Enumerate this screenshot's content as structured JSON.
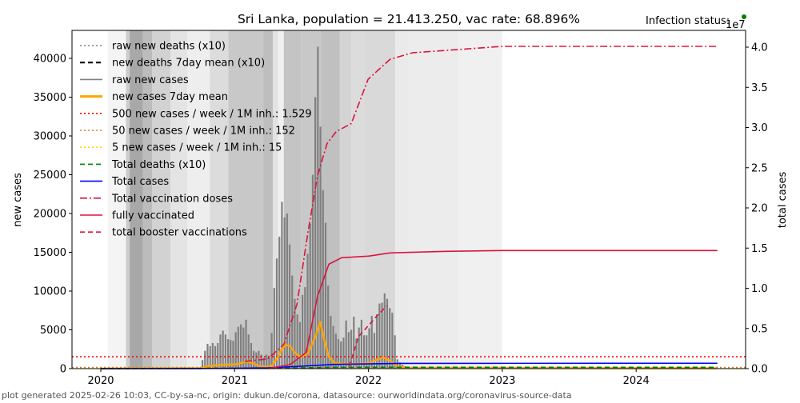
{
  "chart_data": {
    "type": "bar+line",
    "title": "Sri Lanka, population = 21.413.250, vac rate: 68.896%",
    "status_label": "Infection status:",
    "status_color": "#008000",
    "ylabel": "new cases",
    "ylabel_right": "total cases",
    "right_offset_label": "1e7",
    "ylim": [
      0,
      43700
    ],
    "ylim_right": [
      0,
      4.2
    ],
    "xlim": [
      "2019-10-15",
      "2024-11-10"
    ],
    "x_ticks": [
      "2020",
      "2021",
      "2022",
      "2023",
      "2024"
    ],
    "y_ticks": [
      "0",
      "5000",
      "10000",
      "15000",
      "20000",
      "25000",
      "30000",
      "35000",
      "40000"
    ],
    "y_ticks_right": [
      "0.0",
      "0.5",
      "1.0",
      "1.5",
      "2.0",
      "2.5",
      "3.0",
      "3.5",
      "4.0"
    ],
    "grid": false,
    "legend_placement": "upper-left",
    "legend": [
      {
        "label": "raw new deaths (x10)",
        "color": "#808080",
        "style": "dotted"
      },
      {
        "label": "new deaths 7day mean (x10)",
        "color": "#000000",
        "style": "dashed"
      },
      {
        "label": "raw new cases",
        "color": "#808080",
        "style": "solid"
      },
      {
        "label": "new cases 7day mean",
        "color": "#ffa500",
        "style": "solid-thick"
      },
      {
        "label": "500 new cases / week / 1M inh.: 1.529",
        "color": "#ff0000",
        "style": "dotted"
      },
      {
        "label": "50 new cases / week / 1M inh.: 152",
        "color": "#cd853f",
        "style": "dotted"
      },
      {
        "label": "5 new cases / week / 1M inh.: 15",
        "color": "#ffd700",
        "style": "dotted"
      },
      {
        "label": "Total deaths (x10)",
        "color": "#008000",
        "style": "dashed"
      },
      {
        "label": "Total cases",
        "color": "#0000ff",
        "style": "solid"
      },
      {
        "label": "Total vaccination doses",
        "color": "#dc143c",
        "style": "dashdot"
      },
      {
        "label": "fully vaccinated",
        "color": "#dc143c",
        "style": "solid"
      },
      {
        "label": "total booster vaccinations",
        "color": "#dc143c",
        "style": "dashed"
      }
    ],
    "thresholds": [
      1529,
      152,
      15
    ],
    "stringency_bands": [
      {
        "from": "2020-01-20",
        "to": "2020-03-10",
        "shade": "#f4f4f4"
      },
      {
        "from": "2020-03-10",
        "to": "2020-03-20",
        "shade": "#cccccc"
      },
      {
        "from": "2020-03-20",
        "to": "2020-04-25",
        "shade": "#a8a8a8"
      },
      {
        "from": "2020-04-25",
        "to": "2020-05-20",
        "shade": "#bcbcbc"
      },
      {
        "from": "2020-05-20",
        "to": "2020-07-10",
        "shade": "#d2d2d2"
      },
      {
        "from": "2020-07-10",
        "to": "2020-08-25",
        "shade": "#e4e4e4"
      },
      {
        "from": "2020-08-25",
        "to": "2020-10-25",
        "shade": "#eeeeee"
      },
      {
        "from": "2020-10-25",
        "to": "2020-12-15",
        "shade": "#dcdcdc"
      },
      {
        "from": "2020-12-15",
        "to": "2021-03-20",
        "shade": "#c8c8c8"
      },
      {
        "from": "2021-03-20",
        "to": "2021-04-15",
        "shade": "#bebebe"
      },
      {
        "from": "2021-04-15",
        "to": "2021-04-30",
        "shade": "#e2e2e2"
      },
      {
        "from": "2021-04-30",
        "to": "2021-05-15",
        "shade": "#f0f0f0"
      },
      {
        "from": "2021-05-15",
        "to": "2021-07-01",
        "shade": "#c4c4c4"
      },
      {
        "from": "2021-07-01",
        "to": "2021-08-25",
        "shade": "#c8c8c8"
      },
      {
        "from": "2021-08-25",
        "to": "2021-10-15",
        "shade": "#c0c0c0"
      },
      {
        "from": "2021-10-15",
        "to": "2021-11-15",
        "shade": "#d4d4d4"
      },
      {
        "from": "2021-11-15",
        "to": "2021-12-20",
        "shade": "#dcdcdc"
      },
      {
        "from": "2021-12-20",
        "to": "2022-03-15",
        "shade": "#d9d9d9"
      },
      {
        "from": "2022-03-15",
        "to": "2022-04-20",
        "shade": "#eaeaea"
      },
      {
        "from": "2022-04-20",
        "to": "2022-09-01",
        "shade": "#ececec"
      },
      {
        "from": "2022-09-01",
        "to": "2022-12-31",
        "shade": "#f0f0f0"
      }
    ],
    "raw_new_cases": {
      "x": [
        "2020-10-05",
        "2020-10-12",
        "2020-10-19",
        "2020-10-26",
        "2020-11-02",
        "2020-11-09",
        "2020-11-16",
        "2020-11-23",
        "2020-11-30",
        "2020-12-07",
        "2020-12-14",
        "2020-12-21",
        "2020-12-28",
        "2021-01-04",
        "2021-01-11",
        "2021-01-18",
        "2021-01-25",
        "2021-02-01",
        "2021-02-08",
        "2021-02-15",
        "2021-02-22",
        "2021-03-01",
        "2021-03-08",
        "2021-03-15",
        "2021-03-22",
        "2021-03-29",
        "2021-04-05",
        "2021-04-12",
        "2021-04-19",
        "2021-04-26",
        "2021-05-03",
        "2021-05-10",
        "2021-05-17",
        "2021-05-24",
        "2021-05-31",
        "2021-06-07",
        "2021-06-14",
        "2021-06-21",
        "2021-06-28",
        "2021-07-05",
        "2021-07-12",
        "2021-07-19",
        "2021-07-26",
        "2021-08-02",
        "2021-08-09",
        "2021-08-16",
        "2021-08-23",
        "2021-08-30",
        "2021-09-06",
        "2021-09-13",
        "2021-09-20",
        "2021-09-27",
        "2021-10-04",
        "2021-10-11",
        "2021-10-18",
        "2021-10-25",
        "2021-11-01",
        "2021-11-08",
        "2021-11-15",
        "2021-11-22",
        "2021-11-29",
        "2021-12-06",
        "2021-12-13",
        "2021-12-20",
        "2021-12-27",
        "2022-01-03",
        "2022-01-10",
        "2022-01-17",
        "2022-01-24",
        "2022-01-31",
        "2022-02-07",
        "2022-02-14",
        "2022-02-21",
        "2022-02-28",
        "2022-03-07",
        "2022-03-14",
        "2022-03-21",
        "2022-03-28",
        "2022-04-04",
        "2022-04-11",
        "2022-04-18",
        "2022-04-25"
      ],
      "values": [
        1100,
        2300,
        3200,
        2900,
        3300,
        2900,
        3300,
        4400,
        4900,
        4400,
        3800,
        3700,
        3600,
        4700,
        5400,
        5700,
        5300,
        6300,
        4400,
        3300,
        2300,
        2100,
        2300,
        1800,
        1400,
        1800,
        1400,
        4600,
        10400,
        14200,
        17000,
        21500,
        19500,
        20000,
        16000,
        12000,
        9000,
        7000,
        6000,
        9500,
        10500,
        14800,
        18700,
        25000,
        35000,
        41500,
        31200,
        23000,
        18800,
        10700,
        6800,
        5500,
        4500,
        3800,
        3500,
        4000,
        6200,
        4700,
        5000,
        6700,
        3900,
        5300,
        6300,
        4300,
        4300,
        5200,
        6800,
        4600,
        7000,
        8400,
        8500,
        9700,
        9000,
        7800,
        7200,
        4300,
        1200,
        800,
        500,
        300,
        200,
        150
      ]
    },
    "new_cases_7day_mean": {
      "x": [
        "2020-01-01",
        "2020-10-01",
        "2020-10-20",
        "2020-11-15",
        "2020-12-15",
        "2021-01-01",
        "2021-02-01",
        "2021-02-20",
        "2021-03-10",
        "2021-04-10",
        "2021-04-25",
        "2021-05-10",
        "2021-05-20",
        "2021-06-01",
        "2021-06-15",
        "2021-07-01",
        "2021-07-20",
        "2021-08-10",
        "2021-08-22",
        "2021-09-01",
        "2021-09-15",
        "2021-10-01",
        "2021-11-01",
        "2021-12-01",
        "2022-01-01",
        "2022-02-10",
        "2022-03-01",
        "2022-03-20",
        "2022-04-15",
        "2024-08-10"
      ],
      "values": [
        0,
        50,
        300,
        450,
        550,
        500,
        900,
        700,
        300,
        250,
        1200,
        2500,
        3100,
        2900,
        2000,
        1500,
        2000,
        4200,
        6000,
        4000,
        1500,
        700,
        600,
        600,
        700,
        1450,
        1000,
        300,
        100,
        50
      ]
    },
    "total_deaths_x10_1e7": {
      "x": [
        "2020-01-01",
        "2021-04-01",
        "2021-08-01",
        "2021-10-01",
        "2022-04-01",
        "2024-08-10"
      ],
      "values": [
        0,
        0.006,
        0.012,
        0.016,
        0.0165,
        0.0168
      ]
    },
    "total_cases_1e7": {
      "x": [
        "2020-01-01",
        "2020-10-01",
        "2021-01-01",
        "2021-04-01",
        "2021-07-01",
        "2021-10-01",
        "2022-01-01",
        "2022-04-01",
        "2024-08-10"
      ],
      "values": [
        0,
        0.0005,
        0.005,
        0.01,
        0.03,
        0.053,
        0.059,
        0.066,
        0.067
      ]
    },
    "total_vaccination_doses_1e7": {
      "x": [
        "2021-01-29",
        "2021-04-01",
        "2021-05-15",
        "2021-06-20",
        "2021-07-20",
        "2021-08-15",
        "2021-09-10",
        "2021-10-05",
        "2021-11-15",
        "2021-12-31",
        "2022-03-01",
        "2022-05-01",
        "2023-01-01",
        "2024-08-10"
      ],
      "values": [
        0.09,
        0.12,
        0.3,
        0.8,
        1.7,
        2.4,
        2.8,
        2.95,
        3.05,
        3.6,
        3.85,
        3.93,
        4.01,
        4.01
      ]
    },
    "fully_vaccinated_1e7": {
      "x": [
        "2021-04-01",
        "2021-06-01",
        "2021-07-15",
        "2021-08-15",
        "2021-09-15",
        "2021-10-20",
        "2022-01-01",
        "2022-03-01",
        "2022-08-01",
        "2023-01-01",
        "2024-08-10"
      ],
      "values": [
        0,
        0.05,
        0.2,
        0.9,
        1.3,
        1.38,
        1.4,
        1.44,
        1.46,
        1.47,
        1.47
      ]
    },
    "total_booster_vaccinations_1e7": {
      "x": [
        "2021-11-10",
        "2021-12-05",
        "2021-12-31",
        "2022-01-25",
        "2022-02-20"
      ],
      "values": [
        0.03,
        0.4,
        0.53,
        0.66,
        0.78
      ]
    }
  },
  "footer": "plot generated 2025-02-26 10:03, CC-by-sa-nc, origin: dukun.de/corona, datasource: ourworldindata.org/coronavirus-source-data"
}
